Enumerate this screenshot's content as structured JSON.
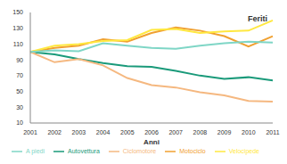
{
  "chart_data": {
    "type": "line",
    "title": "Feriti",
    "x_label": "Anni",
    "categories": [
      "2001",
      "2002",
      "2003",
      "2004",
      "2005",
      "2006",
      "2007",
      "2008",
      "2009",
      "2010",
      "2011"
    ],
    "series": [
      {
        "name": "Autovettura",
        "color": "#1a9a7a",
        "values": [
          100,
          97,
          91,
          86,
          82,
          81,
          76,
          70,
          66,
          68,
          64
        ]
      },
      {
        "name": "Motociclo",
        "color": "#f0a030",
        "values": [
          100,
          105,
          108,
          116,
          113,
          124,
          131,
          127,
          120,
          107,
          120
        ]
      },
      {
        "name": "Ciclomotore",
        "color": "#f5b880",
        "values": [
          100,
          87,
          91,
          83,
          67,
          58,
          55,
          49,
          45,
          38,
          37
        ]
      },
      {
        "name": "Velocipede",
        "color": "#ffe840",
        "values": [
          100,
          108,
          110,
          114,
          115,
          128,
          129,
          124,
          126,
          127,
          140
        ]
      },
      {
        "name": "A piedi",
        "color": "#7fd6c6",
        "values": [
          100,
          102,
          101,
          111,
          108,
          105,
          104,
          108,
          111,
          113,
          112
        ]
      }
    ],
    "ylim": [
      10,
      150
    ],
    "yticks": [
      10,
      30,
      50,
      70,
      90,
      110,
      130,
      150
    ],
    "grid": false,
    "legend": "bottom"
  }
}
